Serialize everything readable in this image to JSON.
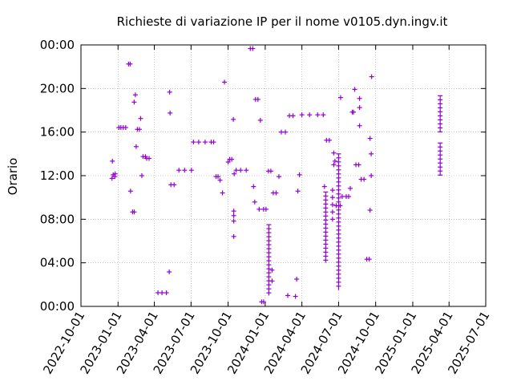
{
  "chart_data": {
    "type": "scatter",
    "title": "Richieste di variazione IP per il nome v0105.dyn.ingv.it",
    "xlabel": "",
    "ylabel": "Orario",
    "x_range": [
      "2022-10-01",
      "2025-07-01"
    ],
    "y_range_hours": [
      0,
      24
    ],
    "x_tick_labels": [
      "2022-10-01",
      "2023-01-01",
      "2023-04-01",
      "2023-07-01",
      "2023-10-01",
      "2024-01-01",
      "2024-04-01",
      "2024-07-01",
      "2024-10-01",
      "2025-01-01",
      "2025-04-01",
      "2025-07-01"
    ],
    "y_tick_labels": [
      "00:00",
      "04:00",
      "08:00",
      "12:00",
      "16:00",
      "20:00",
      "00:00"
    ],
    "grid": true,
    "legend": "none",
    "marker": "plus",
    "series_color": "#9400d3",
    "points": [
      {
        "date": "2022-12-17",
        "time": "11:45"
      },
      {
        "date": "2022-12-18",
        "time": "13:20"
      },
      {
        "date": "2022-12-20",
        "time": "12:05"
      },
      {
        "date": "2022-12-24",
        "time": "11:55"
      },
      {
        "date": "2022-12-25",
        "time": "12:10"
      },
      {
        "date": "2023-01-03",
        "time": "16:25"
      },
      {
        "date": "2023-01-08",
        "time": "16:25"
      },
      {
        "date": "2023-01-14",
        "time": "16:25"
      },
      {
        "date": "2023-01-20",
        "time": "16:25"
      },
      {
        "date": "2023-01-27",
        "time": "22:15"
      },
      {
        "date": "2023-01-31",
        "time": "22:15"
      },
      {
        "date": "2023-02-01",
        "time": "10:35"
      },
      {
        "date": "2023-02-06",
        "time": "08:40"
      },
      {
        "date": "2023-02-10",
        "time": "08:40"
      },
      {
        "date": "2023-02-10",
        "time": "18:45"
      },
      {
        "date": "2023-02-13",
        "time": "19:25"
      },
      {
        "date": "2023-02-15",
        "time": "14:40"
      },
      {
        "date": "2023-02-18",
        "time": "16:15"
      },
      {
        "date": "2023-02-23",
        "time": "16:15"
      },
      {
        "date": "2023-02-26",
        "time": "17:15"
      },
      {
        "date": "2023-03-01",
        "time": "12:00"
      },
      {
        "date": "2023-03-04",
        "time": "13:45"
      },
      {
        "date": "2023-03-10",
        "time": "13:45"
      },
      {
        "date": "2023-03-13",
        "time": "13:35"
      },
      {
        "date": "2023-03-19",
        "time": "13:35"
      },
      {
        "date": "2023-04-10",
        "time": "01:15"
      },
      {
        "date": "2023-04-20",
        "time": "01:15"
      },
      {
        "date": "2023-05-01",
        "time": "01:15"
      },
      {
        "date": "2023-05-08",
        "time": "03:10"
      },
      {
        "date": "2023-05-09",
        "time": "19:40"
      },
      {
        "date": "2023-05-10",
        "time": "17:45"
      },
      {
        "date": "2023-05-12",
        "time": "11:10"
      },
      {
        "date": "2023-05-20",
        "time": "11:10"
      },
      {
        "date": "2023-06-01",
        "time": "12:30"
      },
      {
        "date": "2023-06-15",
        "time": "12:30"
      },
      {
        "date": "2023-07-02",
        "time": "12:30"
      },
      {
        "date": "2023-07-07",
        "time": "15:05"
      },
      {
        "date": "2023-07-20",
        "time": "15:05"
      },
      {
        "date": "2023-08-05",
        "time": "15:05"
      },
      {
        "date": "2023-08-20",
        "time": "15:05"
      },
      {
        "date": "2023-08-26",
        "time": "15:05"
      },
      {
        "date": "2023-09-01",
        "time": "11:55"
      },
      {
        "date": "2023-09-06",
        "time": "11:55"
      },
      {
        "date": "2023-09-11",
        "time": "11:35"
      },
      {
        "date": "2023-09-17",
        "time": "10:25"
      },
      {
        "date": "2023-09-22",
        "time": "20:35"
      },
      {
        "date": "2023-10-01",
        "time": "13:15"
      },
      {
        "date": "2023-10-05",
        "time": "13:30"
      },
      {
        "date": "2023-10-10",
        "time": "13:30"
      },
      {
        "date": "2023-10-15",
        "time": "08:20"
      },
      {
        "date": "2023-10-15",
        "time": "07:50"
      },
      {
        "date": "2023-10-15",
        "time": "08:45"
      },
      {
        "date": "2023-10-15",
        "time": "06:25"
      },
      {
        "date": "2023-10-14",
        "time": "17:10"
      },
      {
        "date": "2023-10-16",
        "time": "12:10"
      },
      {
        "date": "2023-10-21",
        "time": "12:30"
      },
      {
        "date": "2023-11-01",
        "time": "12:30"
      },
      {
        "date": "2023-11-15",
        "time": "12:30"
      },
      {
        "date": "2023-11-25",
        "time": "23:40"
      },
      {
        "date": "2023-12-01",
        "time": "23:40"
      },
      {
        "date": "2023-12-03",
        "time": "11:00"
      },
      {
        "date": "2023-12-06",
        "time": "09:35"
      },
      {
        "date": "2023-12-08",
        "time": "19:00"
      },
      {
        "date": "2023-12-14",
        "time": "19:00"
      },
      {
        "date": "2023-12-20",
        "time": "17:05"
      },
      {
        "date": "2023-12-17",
        "time": "08:55"
      },
      {
        "date": "2023-12-23",
        "time": "00:25"
      },
      {
        "date": "2023-12-28",
        "time": "00:25"
      },
      {
        "date": "2023-12-28",
        "time": "08:55"
      },
      {
        "date": "2024-01-03",
        "time": "08:55"
      },
      {
        "date": "2024-01-09",
        "time": "12:25"
      },
      {
        "date": "2024-01-15",
        "time": "12:25"
      },
      {
        "date": "2024-01-18",
        "time": "03:20"
      },
      {
        "date": "2024-01-18",
        "time": "02:20"
      },
      {
        "date": "2024-01-21",
        "time": "10:25"
      },
      {
        "date": "2024-01-28",
        "time": "10:25"
      },
      {
        "date": "2024-02-04",
        "time": "11:55"
      },
      {
        "date": "2024-02-10",
        "time": "16:00"
      },
      {
        "date": "2024-02-20",
        "time": "16:00"
      },
      {
        "date": "2024-02-26",
        "time": "01:00"
      },
      {
        "date": "2024-03-01",
        "time": "17:30"
      },
      {
        "date": "2024-03-10",
        "time": "17:30"
      },
      {
        "date": "2024-03-16",
        "time": "00:55"
      },
      {
        "date": "2024-03-19",
        "time": "02:30"
      },
      {
        "date": "2024-03-22",
        "time": "10:35"
      },
      {
        "date": "2024-03-26",
        "time": "12:05"
      },
      {
        "date": "2024-04-01",
        "time": "17:35"
      },
      {
        "date": "2024-04-20",
        "time": "17:35"
      },
      {
        "date": "2024-05-10",
        "time": "17:35"
      },
      {
        "date": "2024-05-24",
        "time": "17:35"
      },
      {
        "date": "2024-05-27",
        "time": "11:00"
      },
      {
        "date": "2024-06-01",
        "time": "15:15"
      },
      {
        "date": "2024-06-08",
        "time": "15:15"
      },
      {
        "date": "2024-06-16",
        "time": "10:00"
      },
      {
        "date": "2024-06-16",
        "time": "09:20"
      },
      {
        "date": "2024-06-16",
        "time": "08:40"
      },
      {
        "date": "2024-06-16",
        "time": "08:00"
      },
      {
        "date": "2024-06-16",
        "time": "10:40"
      },
      {
        "date": "2024-06-19",
        "time": "14:05"
      },
      {
        "date": "2024-06-19",
        "time": "13:00"
      },
      {
        "date": "2024-06-22",
        "time": "13:20"
      },
      {
        "date": "2024-06-25",
        "time": "09:15"
      },
      {
        "date": "2024-07-05",
        "time": "09:15"
      },
      {
        "date": "2024-07-06",
        "time": "19:10"
      },
      {
        "date": "2024-07-10",
        "time": "10:05"
      },
      {
        "date": "2024-07-20",
        "time": "10:05"
      },
      {
        "date": "2024-07-26",
        "time": "10:05"
      },
      {
        "date": "2024-07-30",
        "time": "10:50"
      },
      {
        "date": "2024-08-04",
        "time": "17:50"
      },
      {
        "date": "2024-08-07",
        "time": "17:50"
      },
      {
        "date": "2024-08-10",
        "time": "19:55"
      },
      {
        "date": "2024-08-13",
        "time": "13:00"
      },
      {
        "date": "2024-08-20",
        "time": "13:00"
      },
      {
        "date": "2024-08-22",
        "time": "16:35"
      },
      {
        "date": "2024-08-22",
        "time": "18:15"
      },
      {
        "date": "2024-08-22",
        "time": "19:05"
      },
      {
        "date": "2024-08-26",
        "time": "11:40"
      },
      {
        "date": "2024-09-02",
        "time": "11:40"
      },
      {
        "date": "2024-09-09",
        "time": "04:20"
      },
      {
        "date": "2024-09-15",
        "time": "04:20"
      },
      {
        "date": "2024-09-17",
        "time": "08:50"
      },
      {
        "date": "2024-09-17",
        "time": "15:25"
      },
      {
        "date": "2024-09-20",
        "time": "14:00"
      },
      {
        "date": "2024-09-20",
        "time": "12:00"
      },
      {
        "date": "2024-09-21",
        "time": "21:05"
      }
    ],
    "vertical_runs": [
      {
        "date": "2024-01-10",
        "from": "01:00",
        "to": "07:30"
      },
      {
        "date": "2024-05-30",
        "from": "04:00",
        "to": "10:30"
      },
      {
        "date": "2024-07-01",
        "from": "01:30",
        "to": "14:00"
      },
      {
        "date": "2025-03-10",
        "from": "16:00",
        "to": "19:20"
      },
      {
        "date": "2025-03-10",
        "from": "12:00",
        "to": "15:00"
      }
    ]
  }
}
